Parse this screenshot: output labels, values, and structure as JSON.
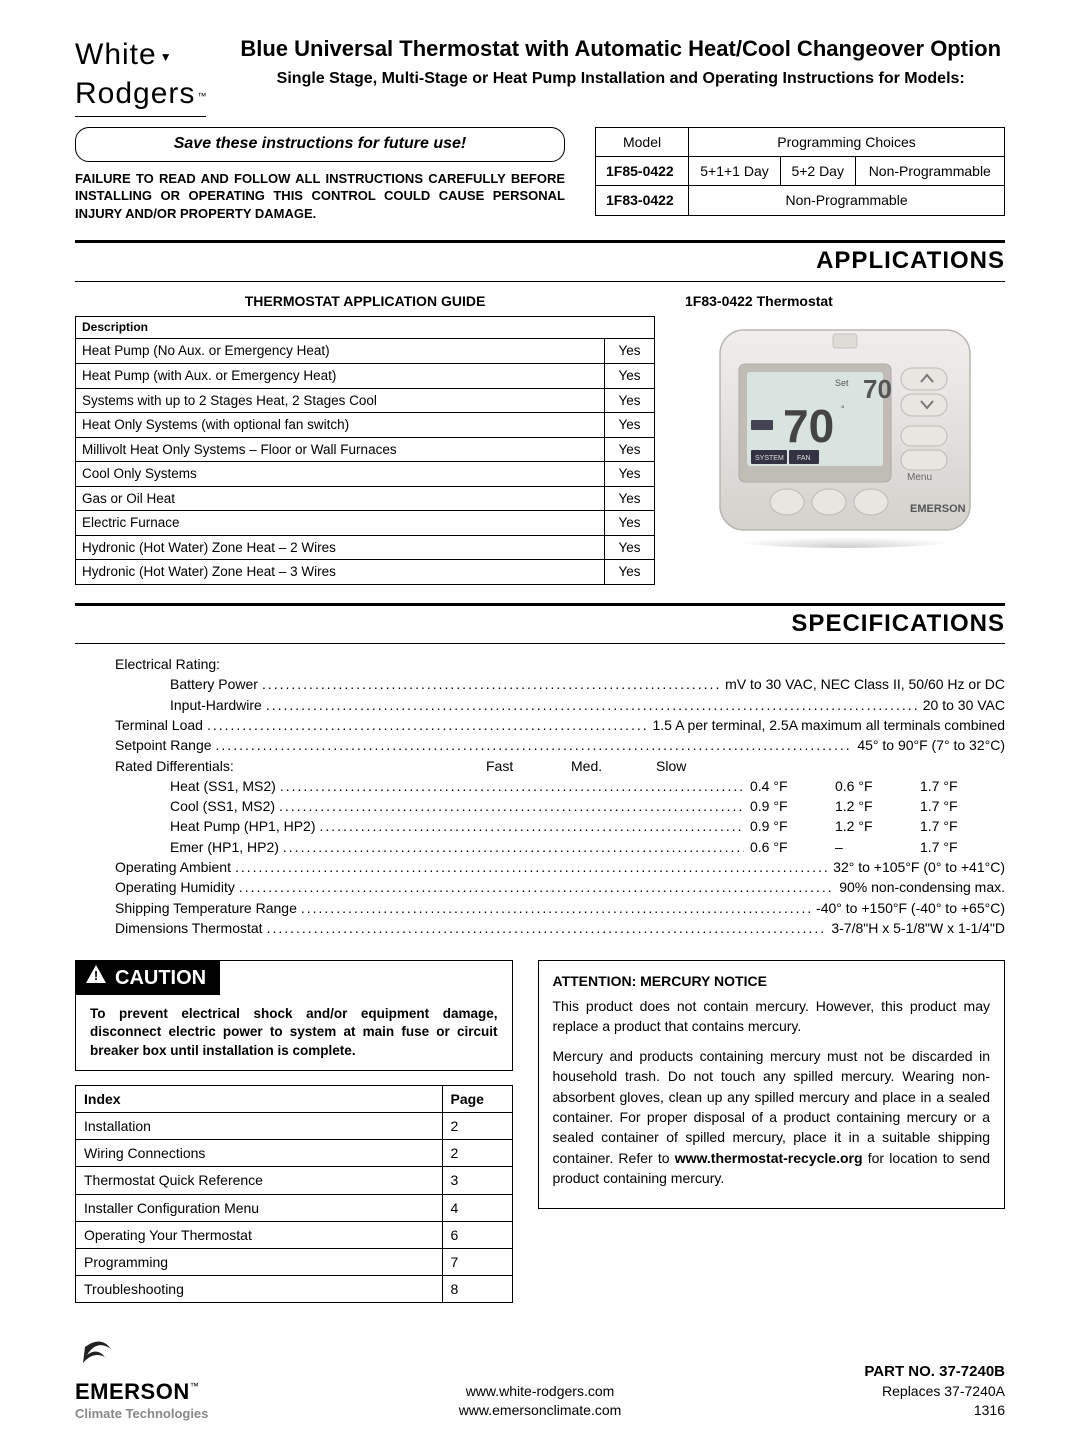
{
  "logo": {
    "line1": "White",
    "line2": "Rodgers",
    "tm": "™"
  },
  "title": {
    "main": "Blue Universal Thermostat with Automatic Heat/Cool Changeover Option",
    "sub": "Single Stage, Multi-Stage or Heat Pump Installation and Operating Instructions for Models:"
  },
  "save_box": "Save these instructions for future use!",
  "warning_caps": "FAILURE TO READ AND FOLLOW ALL INSTRUCTIONS CAREFULLY BEFORE INSTALLING OR OPERATING THIS CONTROL COULD CAUSE PERSONAL INJURY AND/OR PROPERTY DAMAGE.",
  "prog_table": {
    "h1": "Model",
    "h2": "Programming Choices",
    "rows": [
      {
        "model": "1F85-0422",
        "c1": "5+1+1 Day",
        "c2": "5+2 Day",
        "c3": "Non-Programmable"
      },
      {
        "model": "1F83-0422",
        "span": "Non-Programmable"
      }
    ]
  },
  "sections": {
    "applications": "APPLICATIONS",
    "specifications": "SPECIFICATIONS"
  },
  "app_guide": {
    "title": "THERMOSTAT APPLICATION GUIDE",
    "header": "Description",
    "rows": [
      {
        "desc": "Heat Pump (No Aux. or Emergency Heat)",
        "val": "Yes"
      },
      {
        "desc": "Heat Pump (with Aux. or Emergency Heat)",
        "val": "Yes"
      },
      {
        "desc": "Systems with up to 2 Stages Heat, 2 Stages Cool",
        "val": "Yes"
      },
      {
        "desc": "Heat Only Systems (with optional fan switch)",
        "val": "Yes"
      },
      {
        "desc": "Millivolt Heat Only Systems – Floor or Wall Furnaces",
        "val": "Yes"
      },
      {
        "desc": "Cool Only Systems",
        "val": "Yes"
      },
      {
        "desc": "Gas or Oil Heat",
        "val": "Yes"
      },
      {
        "desc": "Electric Furnace",
        "val": "Yes"
      },
      {
        "desc": "Hydronic (Hot Water) Zone Heat – 2 Wires",
        "val": "Yes"
      },
      {
        "desc": "Hydronic (Hot Water) Zone Heat – 3 Wires",
        "val": "Yes"
      }
    ]
  },
  "thermo_caption": "1F83-0422 Thermostat",
  "specs": {
    "lines": [
      {
        "label": "Electrical Rating:",
        "plain": true
      },
      {
        "label": "Battery Power",
        "indent": 1,
        "dots": true,
        "val": "mV to 30 VAC, NEC Class II, 50/60 Hz or DC"
      },
      {
        "label": "Input-Hardwire",
        "indent": 1,
        "dots": true,
        "val": "20 to 30 VAC"
      },
      {
        "label": "Terminal Load",
        "dots": true,
        "val": "1.5 A per terminal, 2.5A maximum all terminals combined"
      },
      {
        "label": "Setpoint Range",
        "dots": true,
        "val": "45° to 90°F (7° to 32°C)"
      },
      {
        "label": "Rated Differentials:",
        "plain": true,
        "valcols": [
          "Fast",
          "Med.",
          "Slow"
        ]
      },
      {
        "label": "Heat (SS1, MS2)",
        "indent": 1,
        "dots": true,
        "valcols": [
          "0.4 °F",
          "0.6 °F",
          "1.7 °F"
        ]
      },
      {
        "label": "Cool (SS1, MS2)",
        "indent": 1,
        "dots": true,
        "valcols": [
          "0.9 °F",
          "1.2 °F",
          "1.7 °F"
        ]
      },
      {
        "label": "Heat Pump (HP1, HP2)",
        "indent": 1,
        "dots": true,
        "valcols": [
          "0.9 °F",
          "1.2 °F",
          "1.7 °F"
        ]
      },
      {
        "label": "Emer (HP1, HP2)",
        "indent": 1,
        "dots": true,
        "valcols": [
          "0.6 °F",
          "–",
          "1.7 °F"
        ]
      },
      {
        "label": "Operating Ambient",
        "dots": true,
        "val": "32° to +105°F (0° to +41°C)"
      },
      {
        "label": "Operating Humidity",
        "dots": true,
        "val": "90% non-condensing max."
      },
      {
        "label": "Shipping Temperature Range",
        "dots": true,
        "val": "-40° to +150°F (-40° to +65°C)"
      },
      {
        "label": "Dimensions Thermostat",
        "dots": true,
        "val": "3-7/8\"H x 5-1/8\"W x 1-1/4\"D"
      }
    ]
  },
  "caution": {
    "label": "CAUTION",
    "body": "To prevent electrical shock and/or equipment damage, disconnect electric power to system at main fuse or circuit breaker box until installation is complete."
  },
  "index": {
    "h1": "Index",
    "h2": "Page",
    "rows": [
      {
        "t": "Installation",
        "p": "2"
      },
      {
        "t": "Wiring Connections",
        "p": "2"
      },
      {
        "t": "Thermostat Quick Reference",
        "p": "3"
      },
      {
        "t": "Installer Configuration Menu",
        "p": "4"
      },
      {
        "t": "Operating Your Thermostat",
        "p": "6"
      },
      {
        "t": "Programming",
        "p": "7"
      },
      {
        "t": "Troubleshooting",
        "p": "8"
      }
    ]
  },
  "mercury": {
    "title": "ATTENTION: MERCURY NOTICE",
    "p1": "This product does not contain mercury. However, this product may replace a product that contains mercury.",
    "p2a": "Mercury and products containing mercury must not be discarded in household trash. Do not touch any spilled mercury. Wearing non-absorbent gloves, clean up any spilled mercury and place in a sealed container. For proper disposal of a product containing mercury or a sealed container of spilled mercury, place it in a suitable shipping container. Refer to ",
    "p2b": "www.thermostat-recycle.org",
    "p2c": " for location to send product containing mercury."
  },
  "footer": {
    "emerson": {
      "name": "EMERSON",
      "sub": "Climate Technologies",
      "tm": "™"
    },
    "urls": [
      "www.white-rodgers.com",
      "www.emersonclimate.com"
    ],
    "partno": "PART NO. 37-7240B",
    "replaces": "Replaces 37-7240A",
    "code": "1316"
  }
}
